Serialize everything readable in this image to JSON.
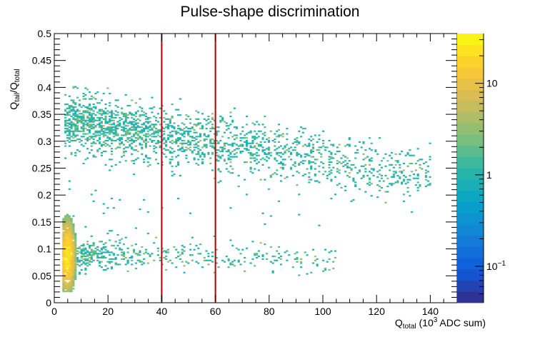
{
  "chart_data": {
    "type": "heatmap",
    "title": "Pulse-shape discrimination",
    "xlabel": {
      "base": "Q",
      "sub": "total",
      "rest_pre": " (10",
      "sup": "3",
      "rest_post": " ADC sum)"
    },
    "ylabel": {
      "a": "Q",
      "a_sub": "tail",
      "sep": "/Q",
      "b_sub": "total"
    },
    "xlim": [
      0,
      150
    ],
    "ylim": [
      0,
      0.5
    ],
    "x_ticks": [
      0,
      20,
      40,
      60,
      80,
      100,
      120,
      140
    ],
    "x_tick_labels": [
      "0",
      "20",
      "40",
      "60",
      "80",
      "100",
      "120",
      "140"
    ],
    "y_ticks": [
      0,
      0.05,
      0.1,
      0.15,
      0.2,
      0.25,
      0.3,
      0.35,
      0.4,
      0.45,
      0.5
    ],
    "y_tick_labels": [
      "0",
      "0.05",
      "0.1",
      "0.15",
      "0.2",
      "0.25",
      "0.3",
      "0.35",
      "0.4",
      "0.45",
      "0.5"
    ],
    "z_scale": "log",
    "zlim": [
      0.04,
      35
    ],
    "z_tick_labels": [
      {
        "value": 10,
        "label": "10"
      },
      {
        "value": 1,
        "label": "1"
      },
      {
        "value": 0.1,
        "label": "10",
        "sup": "−1"
      }
    ],
    "cut_lines": {
      "x": [
        40,
        60
      ],
      "color": "#b30000"
    },
    "bands": [
      {
        "name": "upper band",
        "x_start": 4,
        "x_end": 140,
        "y_at_start": 0.34,
        "y_at_end": 0.232,
        "spread": 0.028
      },
      {
        "name": "lower band",
        "x_start": 3,
        "x_end": 105,
        "y_at_start": 0.09,
        "y_at_end": 0.075,
        "spread": 0.014
      }
    ],
    "hot_region": {
      "x": [
        3,
        8
      ],
      "y": [
        0.02,
        0.17
      ],
      "max_count": 30
    },
    "palette": [
      "#352a87",
      "#0f5cdd",
      "#1481d6",
      "#06a4ca",
      "#2eb7a4",
      "#87bf77",
      "#d1bb59",
      "#fec832",
      "#f9fb0e"
    ]
  }
}
